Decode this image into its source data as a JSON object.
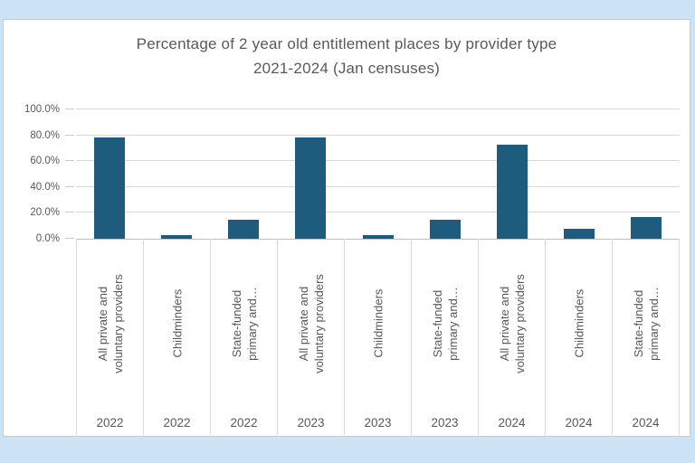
{
  "page": {
    "background_color": "#CBE3F5",
    "panel_background": "#FFFFFF"
  },
  "chart_data": {
    "type": "bar",
    "title": "Percentage of 2 year old entitlement places by provider type 2021-2024 (Jan censuses)",
    "title_lines": [
      "Percentage of 2 year old entitlement places by provider type",
      "2021-2024 (Jan censuses)"
    ],
    "xlabel": "",
    "ylabel": "",
    "ylim": [
      0,
      100
    ],
    "grid": true,
    "legend": "none",
    "bar_color": "#1E5C7D",
    "y_ticks": [
      {
        "value": 0,
        "label": "0.0%"
      },
      {
        "value": 20,
        "label": "20.0%"
      },
      {
        "value": 40,
        "label": "40.0%"
      },
      {
        "value": 60,
        "label": "60.0%"
      },
      {
        "value": 80,
        "label": "80.0%"
      },
      {
        "value": 100,
        "label": "100.0%"
      }
    ],
    "categories": [
      "All private and voluntary providers",
      "Childminders",
      "State-funded primary and…",
      "All private and voluntary providers",
      "Childminders",
      "State-funded primary and…",
      "All private and voluntary providers",
      "Childminders",
      "State-funded primary and…"
    ],
    "values": [
      78,
      3,
      14.5,
      78.5,
      2.5,
      15,
      72.5,
      8,
      16.5
    ],
    "points": [
      {
        "provider_lines": [
          "All private and",
          "voluntary providers"
        ],
        "year": "2022",
        "value": 78
      },
      {
        "provider_lines": [
          "Childminders"
        ],
        "year": "2022",
        "value": 3
      },
      {
        "provider_lines": [
          "State-funded",
          "primary and…"
        ],
        "year": "2022",
        "value": 14.5
      },
      {
        "provider_lines": [
          "All private and",
          "voluntary providers"
        ],
        "year": "2023",
        "value": 78.5
      },
      {
        "provider_lines": [
          "Childminders"
        ],
        "year": "2023",
        "value": 2.5
      },
      {
        "provider_lines": [
          "State-funded",
          "primary and…"
        ],
        "year": "2023",
        "value": 15
      },
      {
        "provider_lines": [
          "All private and",
          "voluntary providers"
        ],
        "year": "2024",
        "value": 72.5
      },
      {
        "provider_lines": [
          "Childminders"
        ],
        "year": "2024",
        "value": 8
      },
      {
        "provider_lines": [
          "State-funded",
          "primary and…"
        ],
        "year": "2024",
        "value": 16.5
      }
    ]
  }
}
